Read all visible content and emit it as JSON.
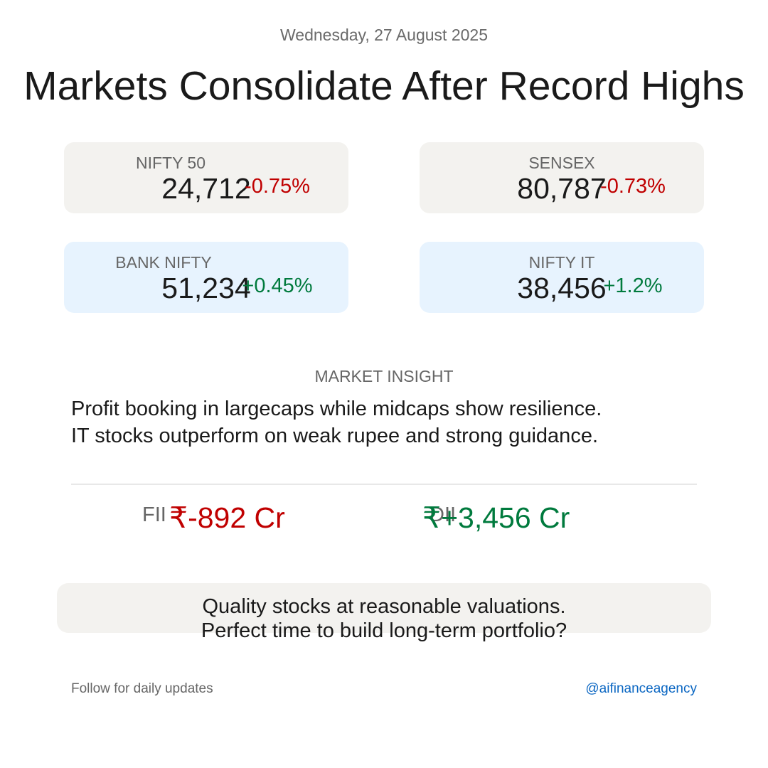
{
  "header": {
    "date": "Wednesday, 27 August 2025",
    "title": "Markets Consolidate After Record Highs"
  },
  "indices": [
    {
      "name": "NIFTY 50",
      "value": "24,712",
      "change": "-0.75%"
    },
    {
      "name": "SENSEX",
      "value": "80,787",
      "change": "-0.73%"
    },
    {
      "name": "BANK NIFTY",
      "value": "51,234",
      "change": "+0.45%"
    },
    {
      "name": "NIFTY IT",
      "value": "38,456",
      "change": "+1.2%"
    }
  ],
  "insight": {
    "label": "MARKET INSIGHT",
    "text": "Profit booking in largecaps while midcaps show resilience. IT stocks outperform on weak rupee and strong guidance."
  },
  "flows": {
    "fii": {
      "label": "FII",
      "value": "₹-892 Cr"
    },
    "dii": {
      "label": "DII",
      "value": "₹+3,456 Cr"
    }
  },
  "cta": {
    "line1": "Quality stocks at reasonable valuations.",
    "line2": "Perfect time to build long-term portfolio?"
  },
  "footer": {
    "left": "Follow for daily updates",
    "handle": "@aifinanceagency"
  },
  "colors": {
    "negative": "#c00000",
    "positive": "#007a3d",
    "card_neutral": "#f3f2ef",
    "card_blue": "#e7f3fe",
    "link": "#0a66c2"
  }
}
